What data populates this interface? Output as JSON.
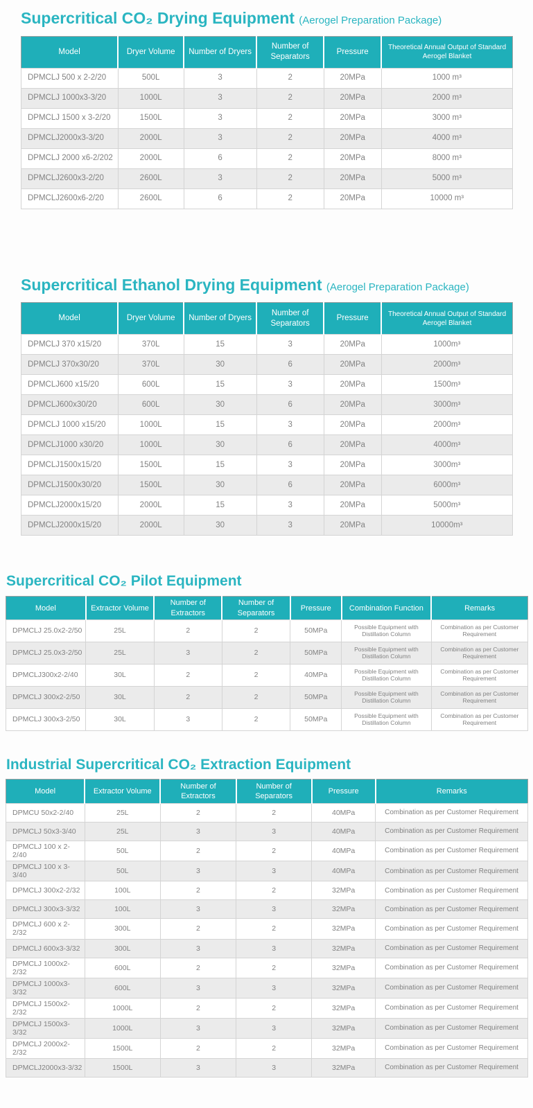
{
  "colors": {
    "accent_teal": "#2ab5c1",
    "table_header_bg": "#1fafb9",
    "row_alt_bg": "#ebebeb",
    "body_text": "#828282"
  },
  "sections": [
    {
      "title": "Supercritical CO₂ Drying Equipment",
      "suffix": "(Aerogel Preparation Package)",
      "table": {
        "columns": [
          "Model",
          "Dryer Volume",
          "Number of Dryers",
          "Number of Separators",
          "Pressure",
          "Theoretical Annual Output of Standard Aerogel Blanket"
        ],
        "rows": [
          [
            "DPMCLJ 500 x 2-2/20",
            "500L",
            "3",
            "2",
            "20MPa",
            "1000 m³"
          ],
          [
            "DPMCLJ 1000x3-3/20",
            "1000L",
            "3",
            "2",
            "20MPa",
            "2000 m³"
          ],
          [
            "DPMCLJ 1500 x 3-2/20",
            "1500L",
            "3",
            "2",
            "20MPa",
            "3000 m³"
          ],
          [
            "DPMCLJ2000x3-3/20",
            "2000L",
            "3",
            "2",
            "20MPa",
            "4000 m³"
          ],
          [
            "DPMCLJ 2000 x6-2/202",
            "2000L",
            "6",
            "2",
            "20MPa",
            "8000 m³"
          ],
          [
            "DPMCLJ2600x3-2/20",
            "2600L",
            "3",
            "2",
            "20MPa",
            "5000 m³"
          ],
          [
            "DPMCLJ2600x6-2/20",
            "2600L",
            "6",
            "2",
            "20MPa",
            "10000 m³"
          ]
        ]
      }
    },
    {
      "title": "Supercritical Ethanol Drying Equipment",
      "suffix": "(Aerogel Preparation Package)",
      "table": {
        "columns": [
          "Model",
          "Dryer Volume",
          "Number of Dryers",
          "Number of Separators",
          "Pressure",
          "Theoretical Annual Output of Standard Aerogel Blanket"
        ],
        "rows": [
          [
            "DPMCLJ 370 x15/20",
            "370L",
            "15",
            "3",
            "20MPa",
            "1000m³"
          ],
          [
            "DPMCLJ 370x30/20",
            "370L",
            "30",
            "6",
            "20MPa",
            "2000m³"
          ],
          [
            "DPMCLJ600 x15/20",
            "600L",
            "15",
            "3",
            "20MPa",
            "1500m³"
          ],
          [
            "DPMCLJ600x30/20",
            "600L",
            "30",
            "6",
            "20MPa",
            "3000m³"
          ],
          [
            "DPMCLJ 1000 x15/20",
            "1000L",
            "15",
            "3",
            "20MPa",
            "2000m³"
          ],
          [
            "DPMCLJ1000 x30/20",
            "1000L",
            "30",
            "6",
            "20MPa",
            "4000m³"
          ],
          [
            "DPMCLJ1500x15/20",
            "1500L",
            "15",
            "3",
            "20MPa",
            "3000m³"
          ],
          [
            "DPMCLJ1500x30/20",
            "1500L",
            "30",
            "6",
            "20MPa",
            "6000m³"
          ],
          [
            "DPMCLJ2000x15/20",
            "2000L",
            "15",
            "3",
            "20MPa",
            "5000m³"
          ],
          [
            "DPMCLJ2000x15/20",
            "2000L",
            "30",
            "3",
            "20MPa",
            "10000m³"
          ]
        ]
      }
    },
    {
      "title": "Supercritical CO₂ Pilot Equipment",
      "suffix": "",
      "table": {
        "columns": [
          "Model",
          "Extractor Volume",
          "Number of Extractors",
          "Number of Separators",
          "Pressure",
          "Combination Function",
          "Remarks"
        ],
        "rows": [
          [
            "DPMCLJ 25.0x2-2/50",
            "25L",
            "2",
            "2",
            "50MPa",
            "Possible Equipment with Distillation Column",
            "Combination as per Customer Requirement"
          ],
          [
            "DPMCLJ 25.0x3-2/50",
            "25L",
            "3",
            "2",
            "50MPa",
            "Possible Equipment with Distillation Column",
            "Combination as per Customer Requirement"
          ],
          [
            "DPMCLJ300x2-2/40",
            "30L",
            "2",
            "2",
            "40MPa",
            "Possible Equipment with Distillation Column",
            "Combination as per Customer Requirement"
          ],
          [
            "DPMCLJ 300x2-2/50",
            "30L",
            "2",
            "2",
            "50MPa",
            "Possible Equipment with Distillation Column",
            "Combination as per Customer Requirement"
          ],
          [
            "DPMCLJ 300x3-2/50",
            "30L",
            "3",
            "2",
            "50MPa",
            "Possible Equipment with Distillation Column",
            "Combination as per Customer Requirement"
          ]
        ]
      }
    },
    {
      "title": "Industrial Supercritical CO₂ Extraction Equipment",
      "suffix": "",
      "table": {
        "columns": [
          "Model",
          "Extractor Volume",
          "Number of Extractors",
          "Number of Separators",
          "Pressure",
          "Remarks"
        ],
        "rows": [
          [
            "DPMCU 50x2-2/40",
            "25L",
            "2",
            "2",
            "40MPa",
            "Combination as per Customer Requirement"
          ],
          [
            "DPMCLJ 50x3-3/40",
            "25L",
            "3",
            "3",
            "40MPa",
            "Combination as per Customer Requirement"
          ],
          [
            "DPMCLJ 100 x 2-2/40",
            "50L",
            "2",
            "2",
            "40MPa",
            "Combination as per Customer Requirement"
          ],
          [
            "DPMCLJ 100 x 3-3/40",
            "50L",
            "3",
            "3",
            "40MPa",
            "Combination as per Customer Requirement"
          ],
          [
            "DPMCLJ 300x2-2/32",
            "100L",
            "2",
            "2",
            "32MPa",
            "Combination as per Customer Requirement"
          ],
          [
            "DPMCLJ 300x3-3/32",
            "100L",
            "3",
            "3",
            "32MPa",
            "Combination as per Customer Requirement"
          ],
          [
            "DPMCLJ 600 x 2-2/32",
            "300L",
            "2",
            "2",
            "32MPa",
            "Combination as per Customer Requirement"
          ],
          [
            "DPMCLJ 600x3-3/32",
            "300L",
            "3",
            "3",
            "32MPa",
            "Combination as per Customer Requirement"
          ],
          [
            "DPMCLJ 1000x2-2/32",
            "600L",
            "2",
            "2",
            "32MPa",
            "Combination as per Customer Requirement"
          ],
          [
            "DPMCLJ 1000x3-3/32",
            "600L",
            "3",
            "3",
            "32MPa",
            "Combination as per Customer Requirement"
          ],
          [
            "DPMCLJ 1500x2-2/32",
            "1000L",
            "2",
            "2",
            "32MPa",
            "Combination as per Customer Requirement"
          ],
          [
            "DPMCLJ 1500x3-3/32",
            "1000L",
            "3",
            "3",
            "32MPa",
            "Combination as per Customer Requirement"
          ],
          [
            "DPMCLJ 2000x2-2/32",
            "1500L",
            "2",
            "2",
            "32MPa",
            "Combination as per Customer Requirement"
          ],
          [
            "DPMCLJ2000x3-3/32",
            "1500L",
            "3",
            "3",
            "32MPa",
            "Combination as per Customer Requirement"
          ]
        ]
      }
    }
  ]
}
